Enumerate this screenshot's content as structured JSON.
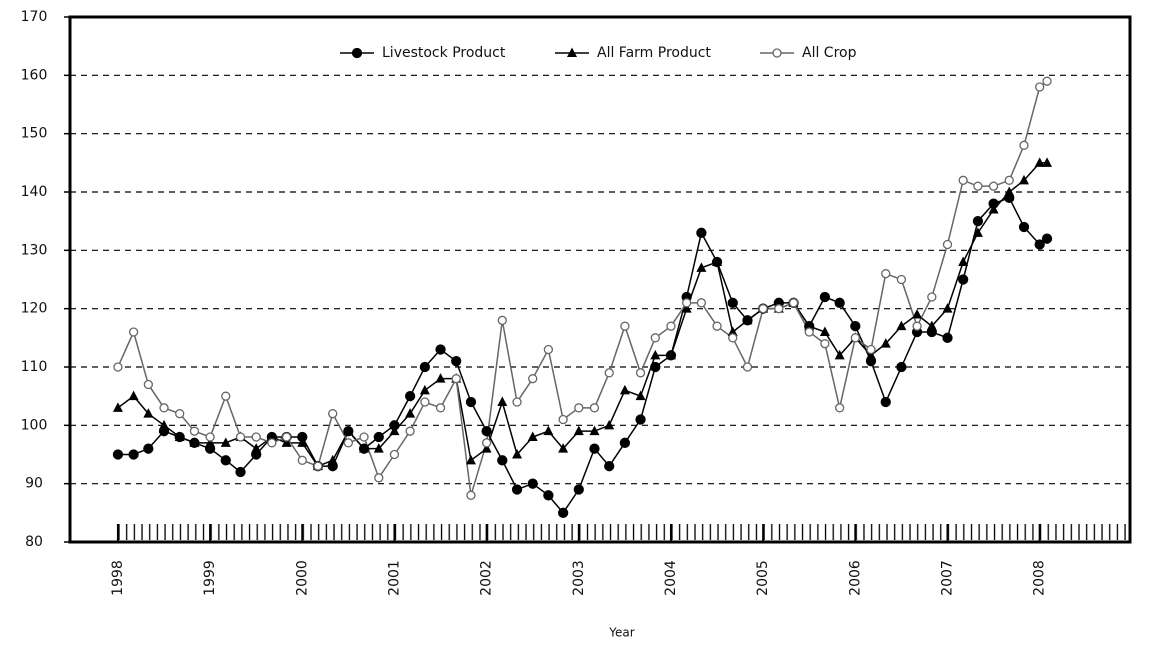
{
  "chart_data": {
    "type": "line",
    "x_label": "Year",
    "x": [
      1998.0,
      1998.17,
      1998.33,
      1998.5,
      1998.67,
      1998.83,
      1999.0,
      1999.17,
      1999.33,
      1999.5,
      1999.67,
      1999.83,
      2000.0,
      2000.17,
      2000.33,
      2000.5,
      2000.67,
      2000.83,
      2001.0,
      2001.17,
      2001.33,
      2001.5,
      2001.67,
      2001.83,
      2002.0,
      2002.17,
      2002.33,
      2002.5,
      2002.67,
      2002.83,
      2003.0,
      2003.17,
      2003.33,
      2003.5,
      2003.67,
      2003.83,
      2004.0,
      2004.17,
      2004.33,
      2004.5,
      2004.67,
      2004.83,
      2005.0,
      2005.17,
      2005.33,
      2005.5,
      2005.67,
      2005.83,
      2006.0,
      2006.17,
      2006.33,
      2006.5,
      2006.67,
      2006.83,
      2007.0,
      2007.17,
      2007.33,
      2007.5,
      2007.67,
      2007.83,
      2008.0,
      2008.08
    ],
    "series": [
      {
        "name": "Livestock Product",
        "color": "#000000",
        "marker": "filled-circle",
        "values": [
          95,
          95,
          96,
          99,
          98,
          97,
          96,
          94,
          92,
          95,
          98,
          98,
          98,
          93,
          93,
          99,
          96,
          98,
          100,
          105,
          110,
          113,
          111,
          104,
          99,
          94,
          89,
          90,
          88,
          85,
          89,
          96,
          93,
          97,
          101,
          110,
          112,
          122,
          133,
          128,
          121,
          118,
          120,
          121,
          121,
          117,
          122,
          121,
          117,
          111,
          104,
          110,
          116,
          116,
          115,
          125,
          135,
          138,
          139,
          134,
          131,
          132
        ]
      },
      {
        "name": "All Farm Product",
        "color": "#000000",
        "marker": "triangle",
        "values": [
          103,
          105,
          102,
          100,
          98,
          97,
          97,
          97,
          98,
          96,
          98,
          97,
          97,
          93,
          94,
          99,
          96,
          96,
          99,
          102,
          106,
          108,
          108,
          94,
          96,
          104,
          95,
          98,
          99,
          96,
          99,
          99,
          100,
          106,
          105,
          112,
          112,
          120,
          127,
          128,
          116,
          118,
          120,
          120,
          121,
          117,
          116,
          112,
          115,
          112,
          114,
          117,
          119,
          117,
          120,
          128,
          133,
          137,
          140,
          142,
          145,
          145
        ]
      },
      {
        "name": "All Crop",
        "color": "#666666",
        "marker": "open-circle",
        "values": [
          110,
          116,
          107,
          103,
          102,
          99,
          98,
          105,
          98,
          98,
          97,
          98,
          94,
          93,
          102,
          97,
          98,
          91,
          95,
          99,
          104,
          103,
          108,
          88,
          97,
          118,
          104,
          108,
          113,
          101,
          103,
          103,
          109,
          117,
          109,
          115,
          117,
          121,
          121,
          117,
          115,
          110,
          120,
          120,
          121,
          116,
          114,
          103,
          115,
          113,
          126,
          125,
          117,
          122,
          131,
          142,
          141,
          141,
          142,
          148,
          158,
          159
        ]
      }
    ],
    "xlim": [
      1997.48,
      2008.98
    ],
    "xticks": [
      1998,
      1999,
      2000,
      2001,
      2002,
      2003,
      2004,
      2005,
      2006,
      2007,
      2008
    ],
    "ylim": [
      80,
      170
    ],
    "yticks": [
      80,
      90,
      100,
      110,
      120,
      130,
      140,
      150,
      160,
      170
    ],
    "grid": true,
    "legend": "upper center"
  }
}
